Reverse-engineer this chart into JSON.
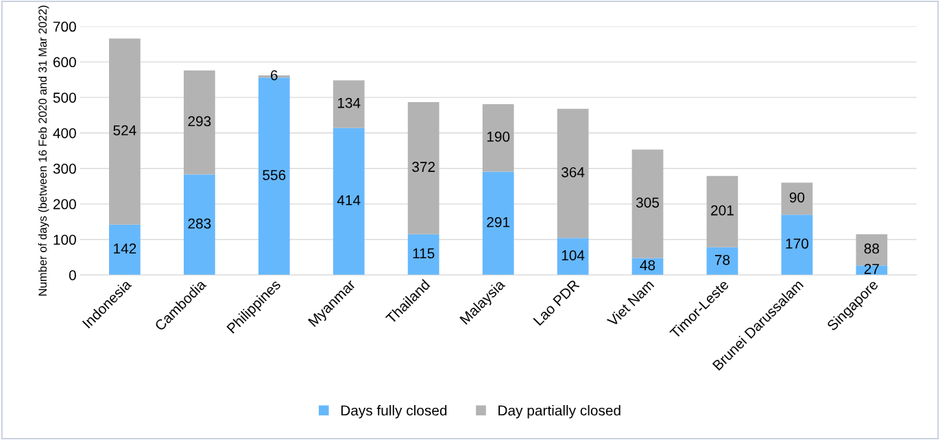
{
  "chart_data": {
    "type": "bar",
    "stacked": true,
    "ylabel": "Number of days (between 16 Feb 2020 and 31 Mar 2022)",
    "categories": [
      "Indonesia",
      "Cambodia",
      "Philippines",
      "Myanmar",
      "Thailand",
      "Malaysia",
      "Lao PDR",
      "Viet Nam",
      "Timor-Leste",
      "Brunei Darussalam",
      "Singapore"
    ],
    "series": [
      {
        "name": "Days fully closed",
        "color": "#66b8fc",
        "values": [
          142,
          283,
          556,
          414,
          115,
          291,
          104,
          48,
          78,
          170,
          27
        ]
      },
      {
        "name": "Day partially closed",
        "color": "#b3b3b3",
        "values": [
          524,
          293,
          6,
          134,
          372,
          190,
          364,
          305,
          201,
          90,
          88
        ]
      }
    ],
    "ylim": [
      0,
      700
    ],
    "yticks": [
      0,
      100,
      200,
      300,
      400,
      500,
      600,
      700
    ],
    "grid": "y",
    "legend": "bottom",
    "data_labels": true
  }
}
